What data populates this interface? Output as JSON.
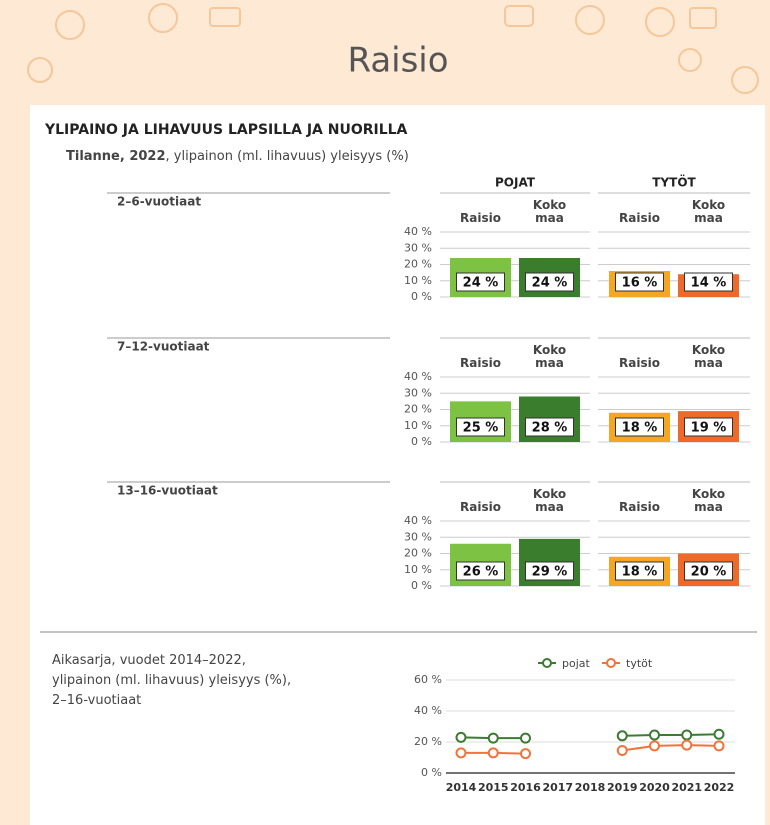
{
  "header": {
    "title": "Raisio"
  },
  "section_title": "YLIPAINO JA LIHAVUUS LAPSILLA JA NUORILLA",
  "subtitle_bold": "Tilanne, 2022",
  "subtitle_rest": ", ylipainon (ml. lihavuus) yleisyys (%)",
  "chart_data": [
    {
      "type": "bar",
      "title": "2–6-vuotiaat",
      "categories": [
        "Raisio",
        "Koko maa"
      ],
      "series": [
        {
          "name": "POJAT",
          "colors": [
            "#7dc242",
            "#3a7d2c"
          ],
          "values": [
            24,
            24
          ],
          "value_labels": [
            "24 %",
            "24 %"
          ]
        },
        {
          "name": "TYTÖT",
          "colors": [
            "#f5a623",
            "#ee6a2a"
          ],
          "values": [
            16,
            14
          ],
          "value_labels": [
            "16 %",
            "14 %"
          ]
        }
      ],
      "ylim": [
        0,
        40
      ],
      "yticks": [
        {
          "value": 0,
          "label": "0 %"
        },
        {
          "value": 10,
          "label": "10 %"
        },
        {
          "value": 20,
          "label": "20 %"
        },
        {
          "value": 30,
          "label": "30 %"
        },
        {
          "value": 40,
          "label": "40 %"
        }
      ],
      "grid": true
    },
    {
      "type": "bar",
      "title": "7–12-vuotiaat",
      "categories": [
        "Raisio",
        "Koko maa"
      ],
      "series": [
        {
          "colors": [
            "#7dc242",
            "#3a7d2c"
          ],
          "values": [
            25,
            28
          ],
          "value_labels": [
            "25 %",
            "28 %"
          ]
        },
        {
          "colors": [
            "#f5a623",
            "#ee6a2a"
          ],
          "values": [
            18,
            19
          ],
          "value_labels": [
            "18 %",
            "19 %"
          ]
        }
      ],
      "ylim": [
        0,
        40
      ],
      "yticks": [
        {
          "value": 0,
          "label": "0 %"
        },
        {
          "value": 10,
          "label": "10 %"
        },
        {
          "value": 20,
          "label": "20 %"
        },
        {
          "value": 30,
          "label": "30 %"
        },
        {
          "value": 40,
          "label": "40 %"
        }
      ],
      "grid": true
    },
    {
      "type": "bar",
      "title": "13–16-vuotiaat",
      "categories": [
        "Raisio",
        "Koko maa"
      ],
      "series": [
        {
          "colors": [
            "#7dc242",
            "#3a7d2c"
          ],
          "values": [
            26,
            29
          ],
          "value_labels": [
            "26 %",
            "29 %"
          ]
        },
        {
          "colors": [
            "#f5a623",
            "#ee6a2a"
          ],
          "values": [
            18,
            20
          ],
          "value_labels": [
            "18 %",
            "20 %"
          ]
        }
      ],
      "ylim": [
        0,
        40
      ],
      "yticks": [
        {
          "value": 0,
          "label": "0 %"
        },
        {
          "value": 10,
          "label": "10 %"
        },
        {
          "value": 20,
          "label": "20 %"
        },
        {
          "value": 30,
          "label": "30 %"
        },
        {
          "value": 40,
          "label": "40 %"
        }
      ],
      "grid": true
    },
    {
      "type": "line",
      "title": "Aikasarja, vuodet 2014–2022, ylipainon (ml. lihavuus) yleisyys (%), 2–16-vuotiaat",
      "categories": [
        "2014",
        "2015",
        "2016",
        "2017",
        "2018",
        "2019",
        "2020",
        "2021",
        "2022"
      ],
      "series": [
        {
          "name": "pojat",
          "color": "#3d7a33",
          "values": [
            23,
            22.5,
            22.5,
            null,
            null,
            24,
            24.5,
            24.5,
            25
          ]
        },
        {
          "name": "tytöt",
          "color": "#f0743a",
          "values": [
            13,
            13,
            12.5,
            null,
            null,
            14.5,
            17.5,
            18,
            17.5
          ]
        }
      ],
      "ylim": [
        0,
        60
      ],
      "yticks": [
        {
          "value": 0,
          "label": "0 %"
        },
        {
          "value": 20,
          "label": "20 %"
        },
        {
          "value": 40,
          "label": "40 %"
        },
        {
          "value": 60,
          "label": "60 %"
        }
      ],
      "grid": true,
      "legend": "top"
    }
  ]
}
